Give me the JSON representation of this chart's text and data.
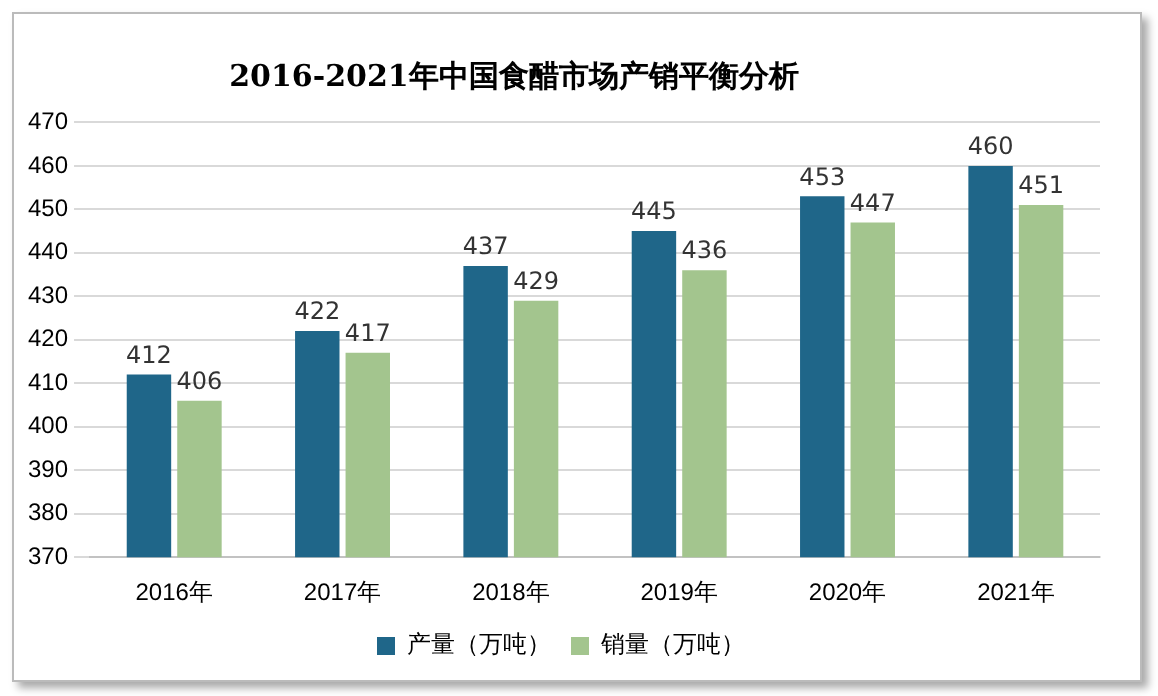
{
  "chart_data": {
    "type": "bar",
    "title": "2016-2021年中国食醋市场产销平衡分析",
    "categories": [
      "2016年",
      "2017年",
      "2018年",
      "2019年",
      "2020年",
      "2021年"
    ],
    "series": [
      {
        "name": "产量（万吨）",
        "color": "#1f6689",
        "values": [
          412,
          422,
          437,
          445,
          453,
          460
        ]
      },
      {
        "name": "销量（万吨）",
        "color": "#a3c58e",
        "values": [
          406,
          417,
          429,
          436,
          447,
          451
        ]
      }
    ],
    "ylim": [
      370,
      470
    ],
    "yticks": [
      370,
      380,
      390,
      400,
      410,
      420,
      430,
      440,
      450,
      460,
      470
    ],
    "grid": "y",
    "legend": "bottom",
    "data_labels": true
  }
}
